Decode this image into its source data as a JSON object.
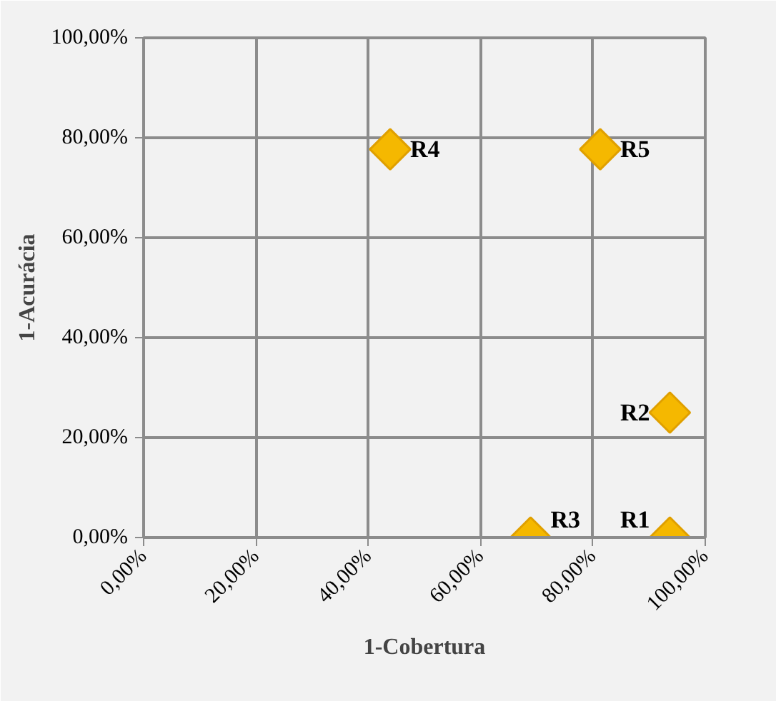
{
  "chart_data": {
    "type": "scatter",
    "xlabel": "1-Cobertura",
    "ylabel": "1-Acurácia",
    "x": [
      93.7,
      93.7,
      68.9,
      43.9,
      81.3
    ],
    "series": [
      {
        "color": "#f5b800",
        "values": [
          0,
          25,
          0,
          77.7,
          77.7
        ]
      }
    ],
    "marker": "diamond",
    "grid": true,
    "xlim": [
      0,
      100
    ],
    "ylim": [
      0,
      100
    ],
    "xticks": [
      {
        "value": 0,
        "label": "0,00%"
      },
      {
        "value": 20,
        "label": "20,00%"
      },
      {
        "value": 40,
        "label": "40,00%"
      },
      {
        "value": 60,
        "label": "60,00%"
      },
      {
        "value": 80,
        "label": "80,00%"
      },
      {
        "value": 100,
        "label": "100,00%"
      }
    ],
    "yticks": [
      {
        "value": 0,
        "label": "0,00%"
      },
      {
        "value": 20,
        "label": "20,00%"
      },
      {
        "value": 40,
        "label": "40,00%"
      },
      {
        "value": 60,
        "label": "60,00%"
      },
      {
        "value": 80,
        "label": "80,00%"
      },
      {
        "value": 100,
        "label": "100,00%"
      }
    ],
    "annotations": [
      {
        "text": "R1",
        "x": 93.7,
        "y": 0
      },
      {
        "text": "R2",
        "x": 93.7,
        "y": 25
      },
      {
        "text": "R3",
        "x": 68.9,
        "y": 0
      },
      {
        "text": "R4",
        "x": 43.9,
        "y": 77.7
      },
      {
        "text": "R5",
        "x": 81.3,
        "y": 77.7
      }
    ]
  }
}
